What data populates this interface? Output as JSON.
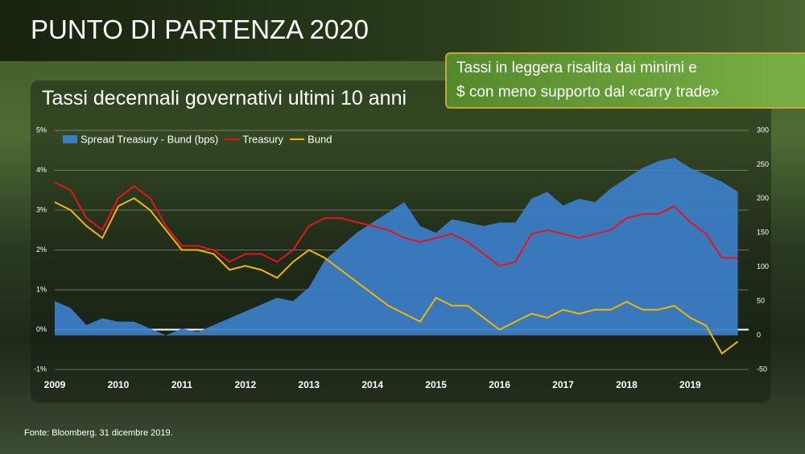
{
  "slide": {
    "heading": "PUNTO DI PARTENZA 2020",
    "callout": [
      "Tassi in leggera risalita dai minimi e",
      "$ con meno supporto dal «carry trade»"
    ],
    "source": "Fonte: Bloomberg. 31 dicembre 2019."
  },
  "chart_data": {
    "type": "line",
    "title": "Tassi decennali governativi ultimi 10 anni",
    "x": [
      2009,
      2009.25,
      2009.5,
      2009.75,
      2010,
      2010.25,
      2010.5,
      2010.75,
      2011,
      2011.25,
      2011.5,
      2011.75,
      2012,
      2012.25,
      2012.5,
      2012.75,
      2013,
      2013.25,
      2013.5,
      2013.75,
      2014,
      2014.25,
      2014.5,
      2014.75,
      2015,
      2015.25,
      2015.5,
      2015.75,
      2016,
      2016.25,
      2016.5,
      2016.75,
      2017,
      2017.25,
      2017.5,
      2017.75,
      2018,
      2018.25,
      2018.5,
      2018.75,
      2019,
      2019.25,
      2019.5,
      2019.75
    ],
    "xlim": [
      2009,
      2019.92
    ],
    "xticks": [
      2009,
      2010,
      2011,
      2012,
      2013,
      2014,
      2015,
      2016,
      2017,
      2018,
      2019
    ],
    "ylim": [
      -1,
      5
    ],
    "yticks": [
      {
        "value": -1,
        "label": "-1%"
      },
      {
        "value": 0,
        "label": "0%"
      },
      {
        "value": 1,
        "label": "1%"
      },
      {
        "value": 2,
        "label": "2%"
      },
      {
        "value": 3,
        "label": "3%"
      },
      {
        "value": 4,
        "label": "4%"
      },
      {
        "value": 5,
        "label": "5%"
      }
    ],
    "y2lim": [
      -50,
      300
    ],
    "y2ticks": [
      -50,
      0,
      50,
      100,
      150,
      200,
      250,
      300
    ],
    "grid": true,
    "legend": "top-left",
    "series": [
      {
        "name": "Spread Treasury - Bund (bps)",
        "type": "area",
        "axis": "y2",
        "color": "#3b7dc4",
        "values": [
          50,
          40,
          15,
          25,
          20,
          20,
          10,
          0,
          10,
          5,
          15,
          25,
          35,
          45,
          55,
          50,
          70,
          110,
          130,
          150,
          165,
          180,
          195,
          160,
          150,
          170,
          165,
          160,
          165,
          165,
          200,
          210,
          190,
          200,
          195,
          215,
          230,
          245,
          255,
          260,
          245,
          235,
          225,
          210
        ]
      },
      {
        "name": "Treasury",
        "color": "#e8141c",
        "values": [
          3.7,
          3.5,
          2.8,
          2.5,
          3.3,
          3.6,
          3.3,
          2.6,
          2.1,
          2.1,
          2.0,
          1.7,
          1.9,
          1.9,
          1.7,
          2.0,
          2.6,
          2.8,
          2.8,
          2.7,
          2.6,
          2.5,
          2.3,
          2.2,
          2.3,
          2.4,
          2.2,
          1.9,
          1.6,
          1.7,
          2.4,
          2.5,
          2.4,
          2.3,
          2.4,
          2.5,
          2.8,
          2.9,
          2.9,
          3.1,
          2.7,
          2.4,
          1.8,
          1.8
        ]
      },
      {
        "name": "Bund",
        "color": "#f2b600",
        "values": [
          3.2,
          3.0,
          2.6,
          2.3,
          3.1,
          3.3,
          3.0,
          2.5,
          2.0,
          2.0,
          1.9,
          1.5,
          1.6,
          1.5,
          1.3,
          1.7,
          2.0,
          1.8,
          1.5,
          1.2,
          0.9,
          0.6,
          0.4,
          0.2,
          0.8,
          0.6,
          0.6,
          0.3,
          0.0,
          0.2,
          0.4,
          0.3,
          0.5,
          0.4,
          0.5,
          0.5,
          0.7,
          0.5,
          0.5,
          0.6,
          0.3,
          0.1,
          -0.6,
          -0.3
        ]
      }
    ]
  }
}
